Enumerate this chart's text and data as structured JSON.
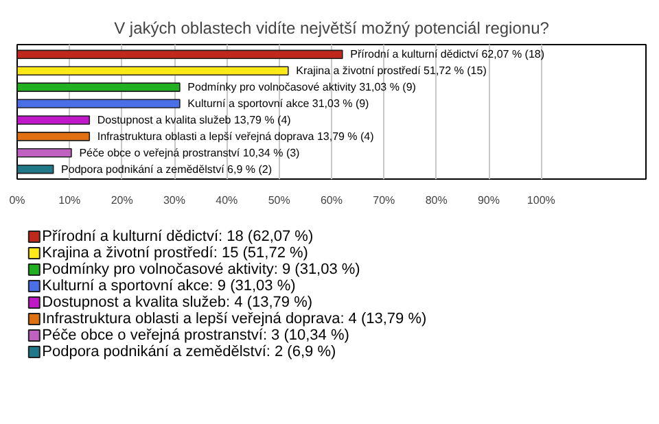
{
  "chart_data": {
    "type": "bar",
    "orientation": "horizontal",
    "title": "V jakých oblastech vidíte největší možný potenciál regionu?",
    "categories": [
      "Přírodní a kulturní dědictví",
      "Krajina a životní prostředí",
      "Podmínky pro volnočasové aktivity",
      "Kulturní a sportovní akce",
      "Dostupnost a kvalita služeb",
      "Infrastruktura oblasti a lepší veřejná doprava",
      "Péče obce o veřejná prostranství",
      "Podpora podnikání a zemědělství"
    ],
    "series": [
      {
        "name": "Přírodní a kulturní dědictví: 18 (62,07 %)",
        "color": "#c0281c",
        "values": [
          62.07,
          null,
          null,
          null,
          null,
          null,
          null,
          null
        ],
        "value_labels": [
          "62,07 % (18)",
          null,
          null,
          null,
          null,
          null,
          null,
          null
        ]
      },
      {
        "name": "Krajina a životní prostředí: 15 (51,72 %)",
        "color": "#ffe818",
        "values": [
          null,
          51.72,
          null,
          null,
          null,
          null,
          null,
          null
        ],
        "value_labels": [
          null,
          "51,72 % (15)",
          null,
          null,
          null,
          null,
          null,
          null
        ]
      },
      {
        "name": "Podmínky pro volnočasové aktivity: 9 (31,03 %)",
        "color": "#20b020",
        "values": [
          null,
          null,
          31.03,
          null,
          null,
          null,
          null,
          null
        ],
        "value_labels": [
          null,
          null,
          "31,03 % (9)",
          null,
          null,
          null,
          null,
          null
        ]
      },
      {
        "name": "Kulturní a sportovní akce: 9 (31,03 %)",
        "color": "#4a6ee8",
        "values": [
          null,
          null,
          null,
          31.03,
          null,
          null,
          null,
          null
        ],
        "value_labels": [
          null,
          null,
          null,
          "31,03 % (9)",
          null,
          null,
          null,
          null
        ]
      },
      {
        "name": "Dostupnost a kvalita služeb: 4 (13,79 %)",
        "color": "#c018c8",
        "values": [
          null,
          null,
          null,
          null,
          13.79,
          null,
          null,
          null
        ],
        "value_labels": [
          null,
          null,
          null,
          null,
          "13,79 % (4)",
          null,
          null,
          null
        ]
      },
      {
        "name": "Infrastruktura oblasti a lepší veřejná doprava: 4 (13,79 %)",
        "color": "#e07010",
        "values": [
          null,
          null,
          null,
          null,
          null,
          13.79,
          null,
          null
        ],
        "value_labels": [
          null,
          null,
          null,
          null,
          null,
          "13,79 % (4)",
          null,
          null
        ]
      },
      {
        "name": "Péče obce o veřejná prostranství: 3 (10,34 %)",
        "color": "#c060c0",
        "values": [
          null,
          null,
          null,
          null,
          null,
          null,
          10.34,
          null
        ],
        "value_labels": [
          null,
          null,
          null,
          null,
          null,
          null,
          "10,34 % (3)",
          null
        ]
      },
      {
        "name": "Podpora podnikání a zemědělství: 2 (6,9 %)",
        "color": "#207888",
        "values": [
          null,
          null,
          null,
          null,
          null,
          null,
          null,
          6.9
        ],
        "value_labels": [
          null,
          null,
          null,
          null,
          null,
          null,
          null,
          "6,9 % (2)"
        ]
      }
    ],
    "xlim": [
      0,
      120
    ],
    "xticks": [
      {
        "value": 0,
        "label": "0%"
      },
      {
        "value": 10,
        "label": "10%"
      },
      {
        "value": 20,
        "label": "20%"
      },
      {
        "value": 30,
        "label": "30%"
      },
      {
        "value": 40,
        "label": "40%"
      },
      {
        "value": 50,
        "label": "50%"
      },
      {
        "value": 60,
        "label": "60%"
      },
      {
        "value": 70,
        "label": "70%"
      },
      {
        "value": 80,
        "label": "80%"
      },
      {
        "value": 90,
        "label": "90%"
      },
      {
        "value": 100,
        "label": "100%"
      }
    ],
    "grid": "x",
    "legend": "bottom",
    "tick_labels": "x"
  }
}
